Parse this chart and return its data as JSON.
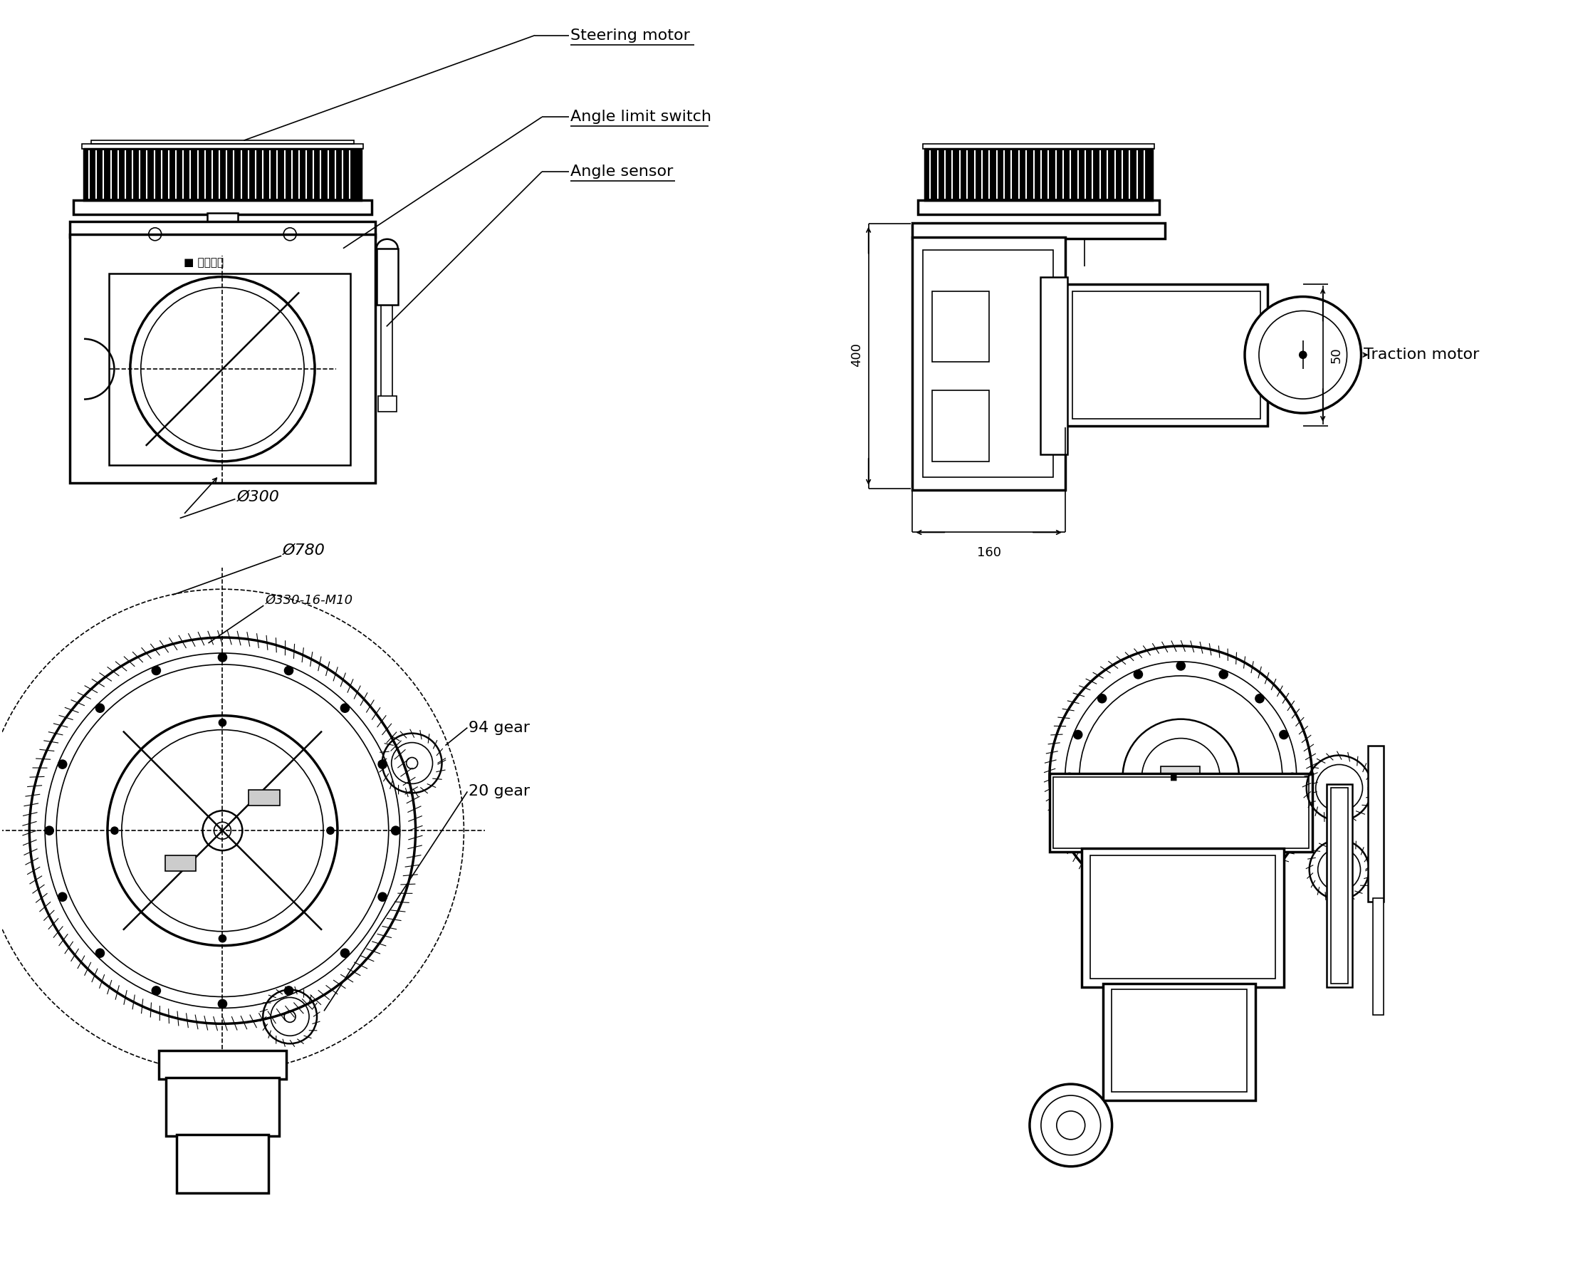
{
  "bg_color": "#ffffff",
  "lc": "#000000",
  "labels": {
    "steering_motor": "Steering motor",
    "angle_limit_switch": "Angle limit switch",
    "angle_sensor": "Angle sensor",
    "traction_motor": "Traction motor",
    "phi300": "Ø300",
    "phi780": "Ø780",
    "phi330": "Ø330-16-M10",
    "gear94": "94 gear",
    "gear20": "20 gear",
    "dim400": "400",
    "dim160": "160",
    "dim50": "50",
    "brand": "■ 智轮科技"
  },
  "font_label": 16,
  "font_dim": 13,
  "fig_w": 22.09,
  "fig_h": 18.07
}
